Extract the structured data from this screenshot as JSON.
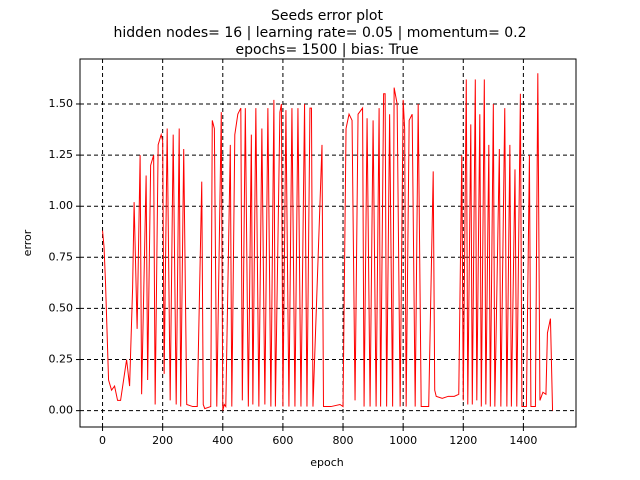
{
  "chart_data": {
    "type": "line",
    "title": "Seeds error plot",
    "subtitle": [
      "hidden nodes= 16 | learning rate= 0.05 | momentum= 0.2",
      "epochs= 1500 | bias: True"
    ],
    "xlabel": "epoch",
    "ylabel": "error",
    "color": "#ff0000",
    "grid": true,
    "xlim": [
      -75,
      1575
    ],
    "ylim": [
      -0.08,
      1.72
    ],
    "xticks": [
      0,
      200,
      400,
      600,
      800,
      1000,
      1200,
      1400
    ],
    "yticks": [
      {
        "value": 0,
        "label": "0.00"
      },
      {
        "value": 0.25,
        "label": "0.25"
      },
      {
        "value": 0.5,
        "label": "0.50"
      },
      {
        "value": 0.75,
        "label": "0.75"
      },
      {
        "value": 1,
        "label": "1.00"
      },
      {
        "value": 1.25,
        "label": "1.25"
      },
      {
        "value": 1.5,
        "label": "1.50"
      }
    ],
    "x": [
      0,
      5,
      10,
      20,
      30,
      40,
      50,
      60,
      70,
      80,
      90,
      100,
      105,
      115,
      125,
      130,
      145,
      150,
      160,
      170,
      175,
      185,
      195,
      200,
      205,
      215,
      225,
      235,
      245,
      255,
      260,
      270,
      280,
      300,
      315,
      330,
      335,
      340,
      360,
      365,
      372,
      380,
      395,
      400,
      405,
      410,
      425,
      430,
      440,
      450,
      460,
      465,
      475,
      485,
      495,
      500,
      510,
      520,
      530,
      540,
      550,
      560,
      570,
      575,
      590,
      595,
      600,
      610,
      620,
      630,
      640,
      650,
      660,
      672,
      680,
      690,
      695,
      700,
      730,
      735,
      760,
      790,
      800,
      810,
      820,
      830,
      840,
      850,
      865,
      870,
      880,
      890,
      900,
      910,
      920,
      925,
      935,
      940,
      945,
      955,
      965,
      970,
      980,
      990,
      1000,
      1005,
      1010,
      1020,
      1030,
      1040,
      1050,
      1060,
      1070,
      1085,
      1100,
      1105,
      1110,
      1130,
      1150,
      1170,
      1185,
      1195,
      1200,
      1210,
      1215,
      1225,
      1230,
      1240,
      1245,
      1255,
      1260,
      1270,
      1275,
      1285,
      1290,
      1300,
      1305,
      1320,
      1325,
      1338,
      1345,
      1355,
      1360,
      1372,
      1378,
      1390,
      1395,
      1410,
      1420,
      1425,
      1440,
      1448,
      1455,
      1465,
      1475,
      1480,
      1490,
      1497
    ],
    "values": [
      0.88,
      0.8,
      0.62,
      0.15,
      0.1,
      0.12,
      0.05,
      0.05,
      0.15,
      0.25,
      0.12,
      0.6,
      1.02,
      0.4,
      1.25,
      0.08,
      1.15,
      0.15,
      1.2,
      1.25,
      0.03,
      1.3,
      1.35,
      1.32,
      0.18,
      1.38,
      0.05,
      1.35,
      0.03,
      1.38,
      0.02,
      1.28,
      0.03,
      0.02,
      0.02,
      1.12,
      0.03,
      0.01,
      0.02,
      1.42,
      1.38,
      0.02,
      1.46,
      0.0,
      0.03,
      0.02,
      1.3,
      0.02,
      1.35,
      1.45,
      1.48,
      0.05,
      1.48,
      0.02,
      1.35,
      0.03,
      1.48,
      0.02,
      1.38,
      0.03,
      1.48,
      0.02,
      1.52,
      0.02,
      1.46,
      1.5,
      0.02,
      1.47,
      0.02,
      1.48,
      0.02,
      1.48,
      0.02,
      1.5,
      0.02,
      1.48,
      1.48,
      0.02,
      1.3,
      0.02,
      0.02,
      0.03,
      0.02,
      1.38,
      1.45,
      1.42,
      0.05,
      1.45,
      1.48,
      0.02,
      1.43,
      0.02,
      1.42,
      0.02,
      1.48,
      0.02,
      1.55,
      1.55,
      0.02,
      1.45,
      0.02,
      1.58,
      1.5,
      0.02,
      1.52,
      1.38,
      0.02,
      1.42,
      1.45,
      0.02,
      1.5,
      0.02,
      0.02,
      0.02,
      1.17,
      0.1,
      0.07,
      0.06,
      0.07,
      0.07,
      0.08,
      1.25,
      0.05,
      1.62,
      0.03,
      1.4,
      0.03,
      1.62,
      0.05,
      1.45,
      0.02,
      1.62,
      0.03,
      1.3,
      0.02,
      1.5,
      0.02,
      1.28,
      0.02,
      1.48,
      0.02,
      1.3,
      0.02,
      1.18,
      0.02,
      1.55,
      0.02,
      0.02,
      1.25,
      0.02,
      0.02,
      1.65,
      0.05,
      0.09,
      0.08,
      0.38,
      0.45,
      0.0
    ]
  }
}
